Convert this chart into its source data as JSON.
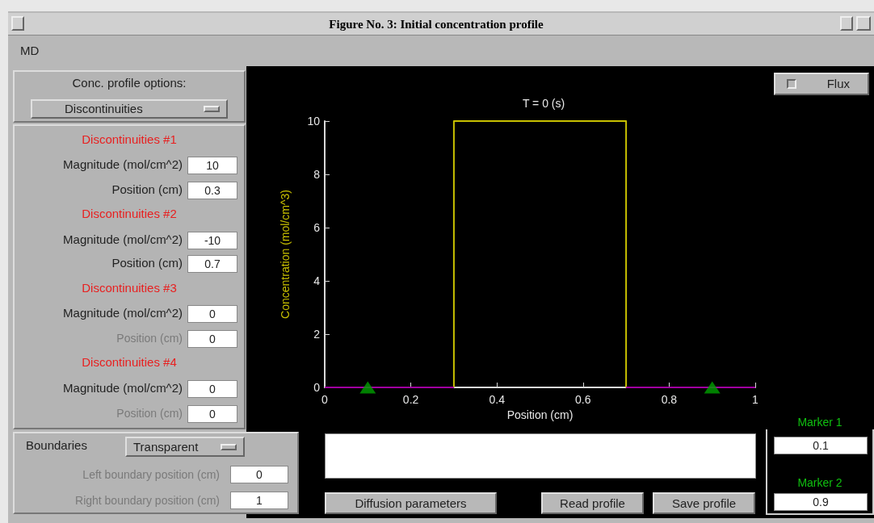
{
  "chart_data": {
    "type": "line",
    "title": "T = 0 (s)",
    "xlabel": "Position (cm)",
    "ylabel": "Concentration (mol/cm^3)",
    "xlim": [
      0,
      1
    ],
    "xticks": [
      0,
      0.2,
      0.4,
      0.6,
      0.8,
      1
    ],
    "ylim": [
      0,
      10
    ],
    "yticks": [
      0,
      2,
      4,
      6,
      8,
      10
    ],
    "series": [
      {
        "color": "#c8c000",
        "marker": "none",
        "x": [
          0.3,
          0.3,
          0.7,
          0.7
        ],
        "values": [
          0,
          10,
          10,
          0
        ]
      },
      {
        "color": "#a000a0",
        "marker": "none",
        "x": [
          0,
          0.3,
          0.5,
          0.7,
          1
        ],
        "values": [
          0,
          0,
          null,
          0,
          0
        ]
      },
      {
        "type": "scatter",
        "color": "#00a000",
        "marker": "triangle",
        "x": [
          0.1,
          0.9
        ],
        "values": [
          0,
          0
        ]
      }
    ],
    "annotations": [
      "Figure No. 3: Initial concentration profile",
      "MD",
      "Conc. profile options:",
      "Discontinuities",
      "Discontinuities #1",
      "Magnitude (mol/cm^2)",
      "10",
      "Position (cm)",
      "0.3",
      "Discontinuities #2",
      "Magnitude (mol/cm^2)",
      "-10",
      "Position (cm)",
      "0.7",
      "Discontinuities #3",
      "Magnitude (mol/cm^2)",
      "0",
      "Position (cm)",
      "0",
      "Discontinuities #4",
      "Magnitude (mol/cm^2)",
      "0",
      "Position (cm)",
      "0",
      "Boundaries",
      "Transparent",
      "Left boundary position (cm)",
      "0",
      "Right boundary position (cm)",
      "1",
      "Diffusion parameters",
      "Read profile",
      "Save profile",
      "Marker 1",
      "0.1",
      "Marker 2",
      "0.9",
      "Flux"
    ]
  }
}
